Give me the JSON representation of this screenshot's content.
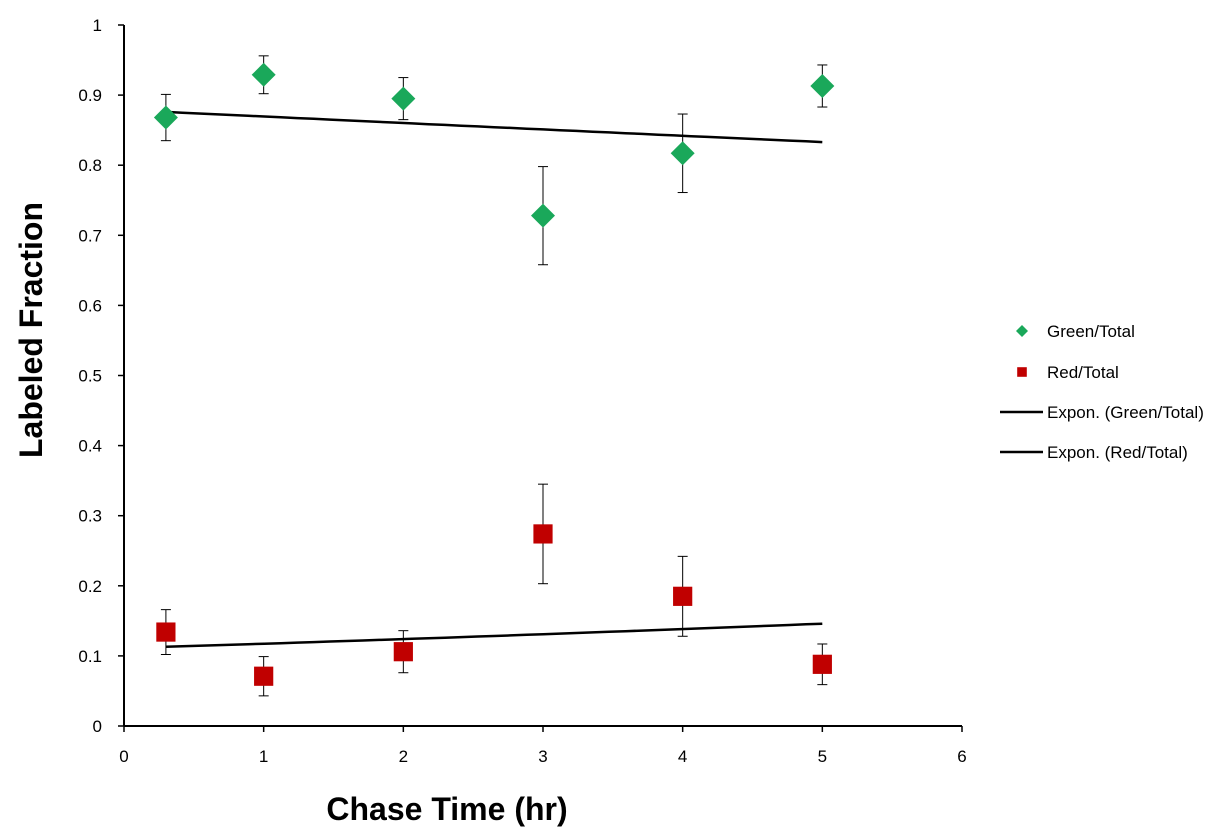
{
  "chart_data": {
    "type": "scatter",
    "title": "",
    "xlabel": "Chase Time (hr)",
    "ylabel": "Labeled Fraction",
    "xlim": [
      0,
      6
    ],
    "ylim": [
      0,
      1
    ],
    "xticks": [
      0,
      1,
      2,
      3,
      4,
      5,
      6
    ],
    "yticks": [
      0,
      0.1,
      0.2,
      0.3,
      0.4,
      0.5,
      0.6,
      0.7,
      0.8,
      0.9,
      1
    ],
    "xtick_labels": [
      "0",
      "1",
      "2",
      "3",
      "4",
      "5",
      "6"
    ],
    "ytick_labels": [
      "0",
      "0.1",
      "0.2",
      "0.3",
      "0.4",
      "0.5",
      "0.6",
      "0.7",
      "0.8",
      "0.9",
      "1"
    ],
    "grid": false,
    "legend_position": "right",
    "series": [
      {
        "name": "Green/Total",
        "marker": "diamond",
        "color": "#1aa85a",
        "x": [
          0.3,
          1,
          2,
          3,
          4,
          5
        ],
        "y": [
          0.868,
          0.929,
          0.895,
          0.728,
          0.817,
          0.913
        ],
        "err": [
          0.033,
          0.027,
          0.03,
          0.07,
          0.056,
          0.03
        ]
      },
      {
        "name": "Red/Total",
        "marker": "square",
        "color": "#c00000",
        "x": [
          0.3,
          1,
          2,
          3,
          4,
          5
        ],
        "y": [
          0.134,
          0.071,
          0.106,
          0.274,
          0.185,
          0.088
        ],
        "err": [
          0.032,
          0.028,
          0.03,
          0.071,
          0.057,
          0.029
        ]
      }
    ],
    "trendlines": [
      {
        "name": "Expon. (Green/Total)",
        "type": "exponential",
        "color": "#000000",
        "x": [
          0.3,
          5
        ],
        "y": [
          0.876,
          0.833
        ]
      },
      {
        "name": "Expon. (Red/Total)",
        "type": "exponential",
        "color": "#000000",
        "x": [
          0.3,
          5
        ],
        "y": [
          0.113,
          0.146
        ]
      }
    ]
  }
}
